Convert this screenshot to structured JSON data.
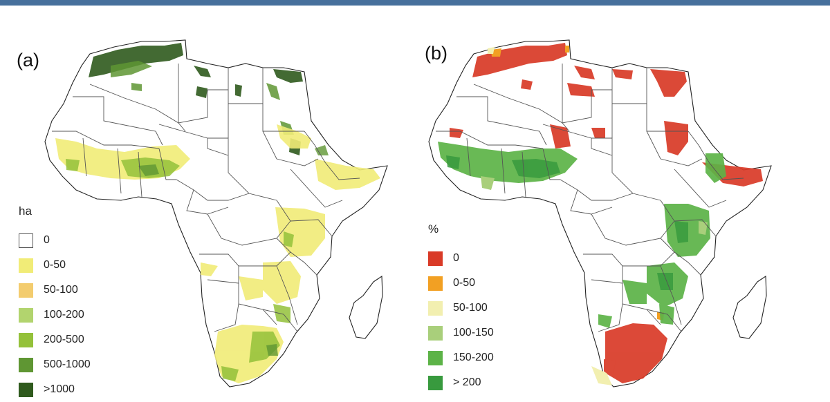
{
  "panels": [
    {
      "label": "(a)",
      "legend": {
        "title": "ha",
        "items": [
          {
            "label": "0",
            "color": "#ffffff"
          },
          {
            "label": "0-50",
            "color": "#f1ec77"
          },
          {
            "label": "50-100",
            "color": "#f3cc6e"
          },
          {
            "label": "100-200",
            "color": "#b2d46e"
          },
          {
            "label": "200-500",
            "color": "#94c13a"
          },
          {
            "label": "500-1000",
            "color": "#5f9633"
          },
          {
            "label": ">1000",
            "color": "#2f5a1d"
          }
        ]
      }
    },
    {
      "label": "(b)",
      "legend": {
        "title": "%",
        "items": [
          {
            "label": "0",
            "color": "#d93a27"
          },
          {
            "label": "0-50",
            "color": "#f2a023"
          },
          {
            "label": "50-100",
            "color": "#f2efb0"
          },
          {
            "label": "100-150",
            "color": "#a9cf7b"
          },
          {
            "label": "150-200",
            "color": "#5cb347"
          },
          {
            "label": "> 200",
            "color": "#389a3e"
          }
        ]
      }
    }
  ]
}
